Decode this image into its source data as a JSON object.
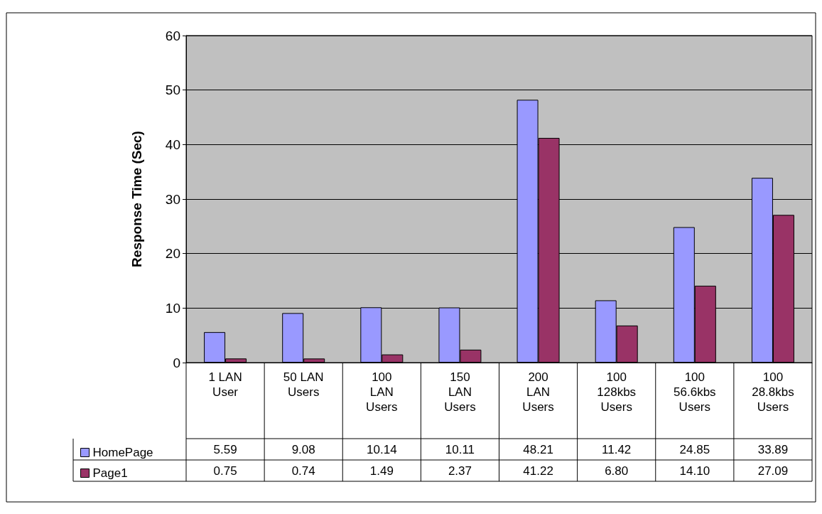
{
  "chart_data": {
    "type": "bar",
    "ylabel": "Response Time (Sec)",
    "categories": [
      "1 LAN User",
      "50 LAN Users",
      "100 LAN Users",
      "150 LAN Users",
      "200 LAN Users",
      "100 128kbs Users",
      "100 56.6kbs Users",
      "100 28.8kbs Users"
    ],
    "series": [
      {
        "name": "HomePage",
        "color": "#9999ff",
        "values": [
          5.59,
          9.08,
          10.14,
          10.11,
          48.21,
          11.42,
          24.85,
          33.89
        ],
        "value_labels": [
          "5.59",
          "9.08",
          "10.14",
          "10.11",
          "48.21",
          "11.42",
          "24.85",
          "33.89"
        ]
      },
      {
        "name": "Page1",
        "color": "#993366",
        "values": [
          0.75,
          0.74,
          1.49,
          2.37,
          41.22,
          6.8,
          14.1,
          27.09
        ],
        "value_labels": [
          "0.75",
          "0.74",
          "1.49",
          "2.37",
          "41.22",
          "6.80",
          "14.10",
          "27.09"
        ]
      }
    ],
    "ylim": [
      0,
      60
    ],
    "yticks": [
      0,
      10,
      20,
      30,
      40,
      50,
      60
    ],
    "grid": "y",
    "legend": "bottom left"
  }
}
